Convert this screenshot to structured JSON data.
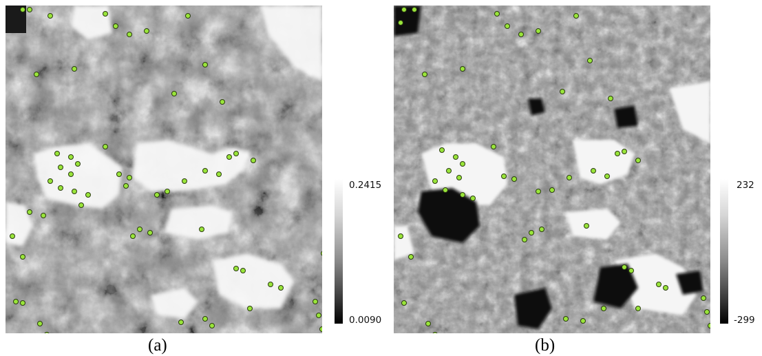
{
  "panels": [
    {
      "id": "a",
      "caption": "(a)",
      "colorbar": {
        "max_label": "0.2415",
        "min_label": "0.0090",
        "gradient": [
          "#ffffff",
          "#d6d6d6",
          "#8f8f8f",
          "#3c3c3c",
          "#000000"
        ]
      },
      "marker_color": "#99e53a"
    },
    {
      "id": "b",
      "caption": "(b)",
      "colorbar": {
        "max_label": "232",
        "min_label": "-299",
        "gradient": [
          "#ffffff",
          "#d6d6d6",
          "#8f8f8f",
          "#3c3c3c",
          "#000000"
        ]
      },
      "marker_color": "#99e53a"
    }
  ]
}
